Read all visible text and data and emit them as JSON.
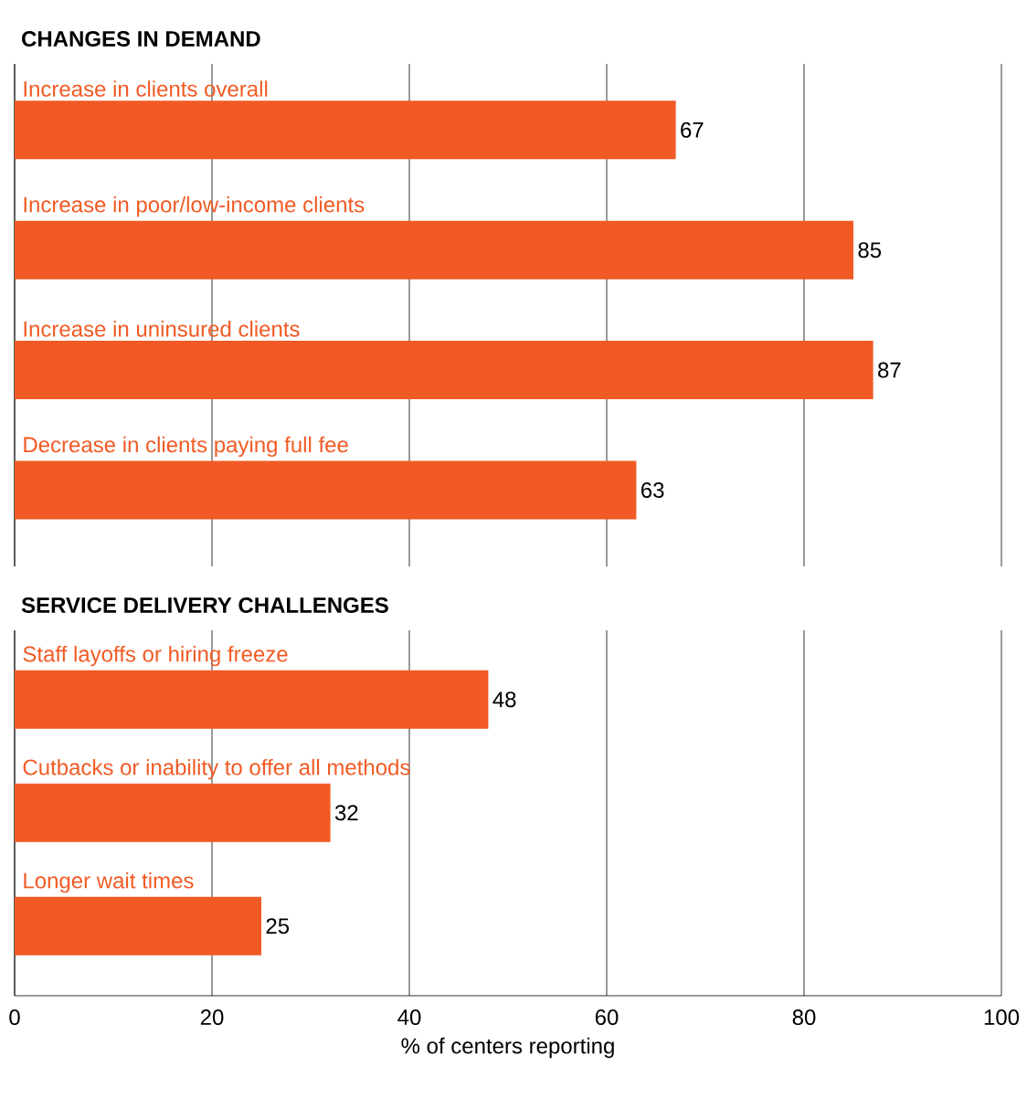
{
  "chart_data": [
    {
      "type": "bar",
      "orientation": "horizontal",
      "title": "CHANGES IN DEMAND",
      "categories": [
        "Increase in clients overall",
        "Increase in poor/low-income clients",
        "Increase in uninsured clients",
        "Decrease in clients paying full fee"
      ],
      "values": [
        67,
        85,
        87,
        63
      ],
      "color": "#f15a24",
      "data_labels": true,
      "xlim": [
        0,
        100
      ],
      "xticks": [
        0,
        20,
        40,
        60,
        80,
        100
      ],
      "grid": "x",
      "tick_labels": false
    },
    {
      "type": "bar",
      "orientation": "horizontal",
      "title": "SERVICE DELIVERY CHALLENGES",
      "categories": [
        "Staff layoffs or hiring freeze",
        "Cutbacks or inability to offer all methods",
        "Longer wait times"
      ],
      "values": [
        48,
        32,
        25
      ],
      "color": "#f15a24",
      "data_labels": true,
      "xlim": [
        0,
        100
      ],
      "xticks": [
        0,
        20,
        40,
        60,
        80,
        100
      ],
      "grid": "x",
      "xlabel": "% of centers reporting"
    }
  ]
}
